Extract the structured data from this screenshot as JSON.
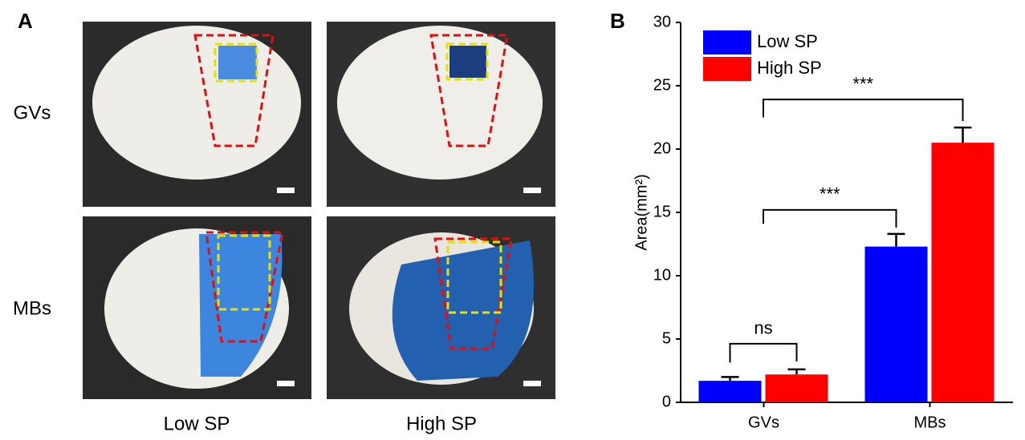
{
  "panel_a": {
    "label": "A",
    "rows": [
      "GVs",
      "MBs"
    ],
    "columns": [
      "Low SP",
      "High SP"
    ]
  },
  "chart_data": {
    "type": "bar",
    "panel_label": "B",
    "y_label": "Area(mm²)",
    "categories": [
      "GVs",
      "MBs"
    ],
    "series": [
      {
        "name": "Low SP",
        "color": "#0000ff",
        "values": [
          1.7,
          12.3
        ],
        "errors": [
          0.3,
          1.0
        ]
      },
      {
        "name": "High SP",
        "color": "#ff0000",
        "values": [
          2.2,
          20.5
        ],
        "errors": [
          0.4,
          1.2
        ]
      }
    ],
    "ylim": [
      0,
      30
    ],
    "yticks": [
      0,
      5,
      10,
      15,
      20,
      25,
      30
    ],
    "legend": "top-left",
    "annotations": [
      "ns",
      "***",
      "***"
    ]
  }
}
